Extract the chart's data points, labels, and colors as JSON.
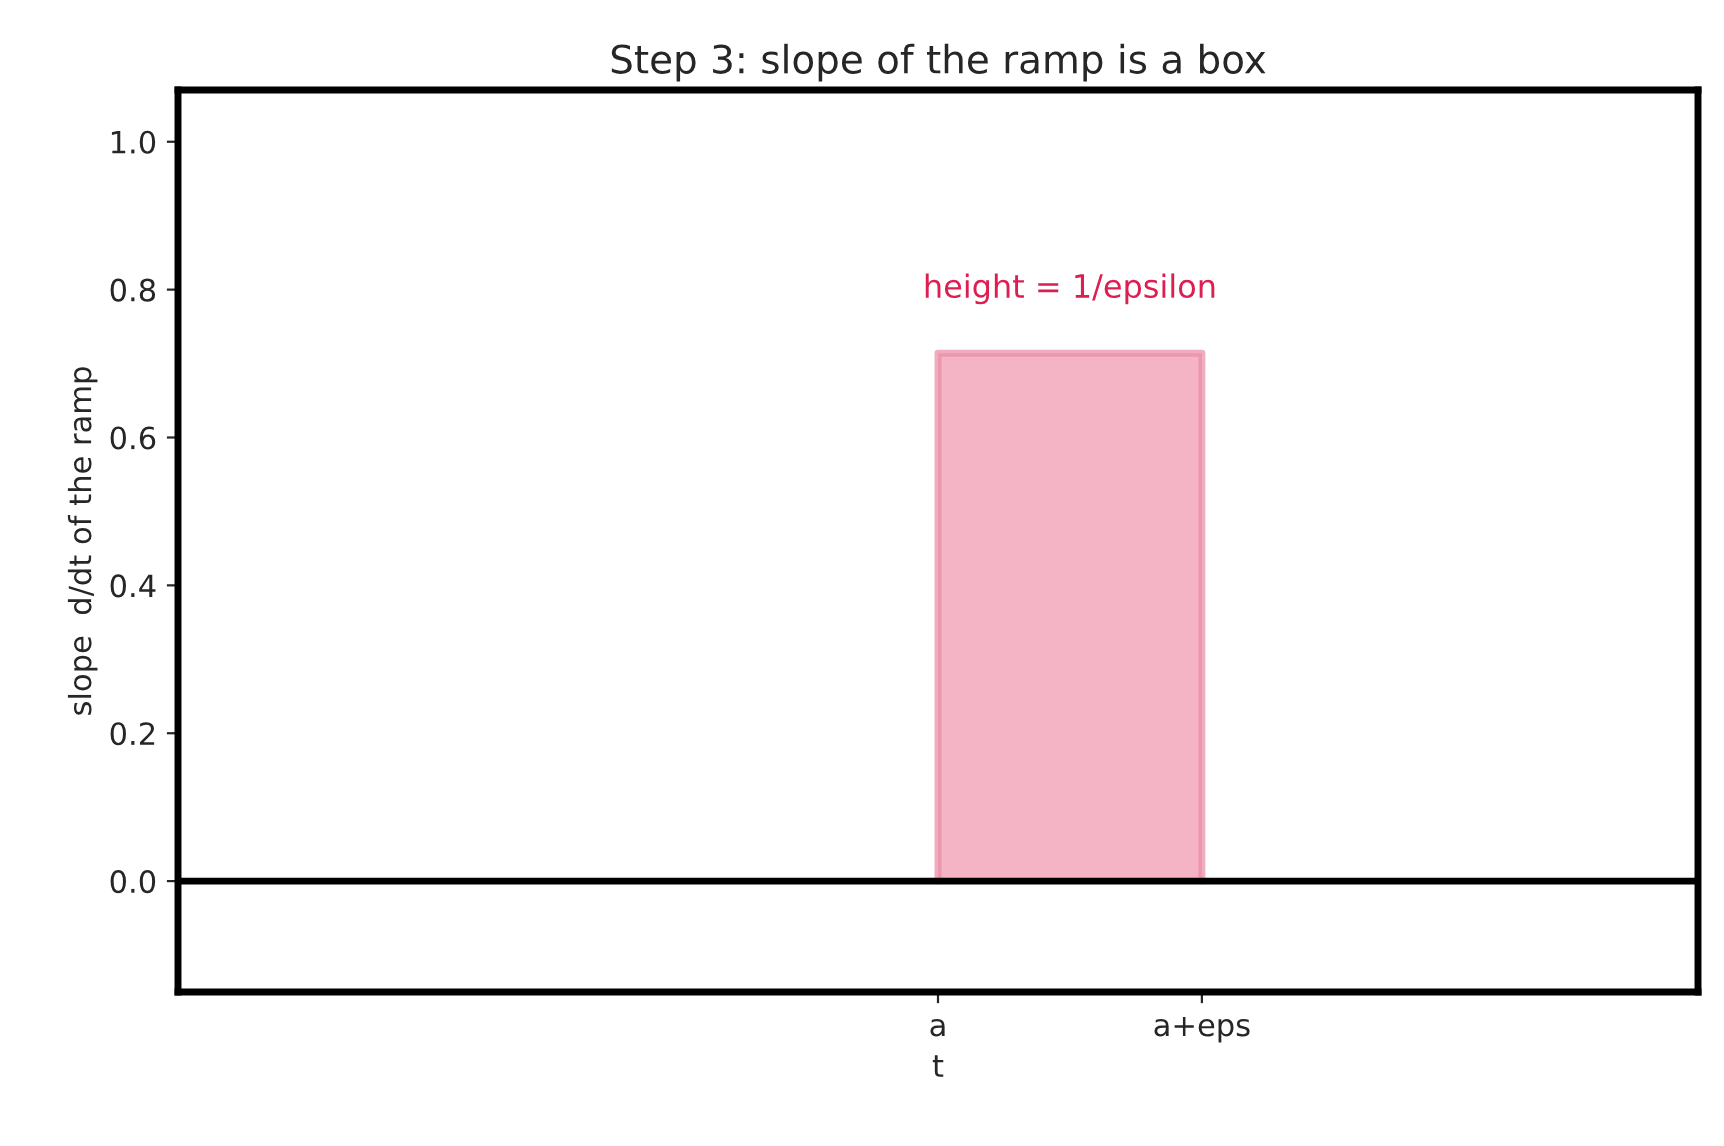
{
  "chart_data": {
    "type": "area",
    "title": "Step 3: slope of the ramp is a box",
    "xlabel": "t",
    "ylabel": "slope  d/dt of the ramp",
    "categories": [
      null,
      null,
      "a",
      "a+eps",
      null
    ],
    "series": [
      {
        "color": "#f4b0c2",
        "values": [
          null,
          null,
          0.714,
          0.714,
          null
        ]
      }
    ],
    "ylim": [
      -0.15,
      1.07
    ],
    "yticks": [
      {
        "value": 0,
        "label": "0.0"
      },
      0.2,
      0.4,
      0.6,
      0.8,
      {
        "value": 1,
        "label": "1.0"
      }
    ],
    "ref_lines": [
      {
        "axis": "y",
        "value": 0,
        "color": "#000000"
      }
    ],
    "annotations": [
      {
        "text": "height = 1/epsilon",
        "y": 0.714
      }
    ],
    "grid": false,
    "legend": false
  }
}
